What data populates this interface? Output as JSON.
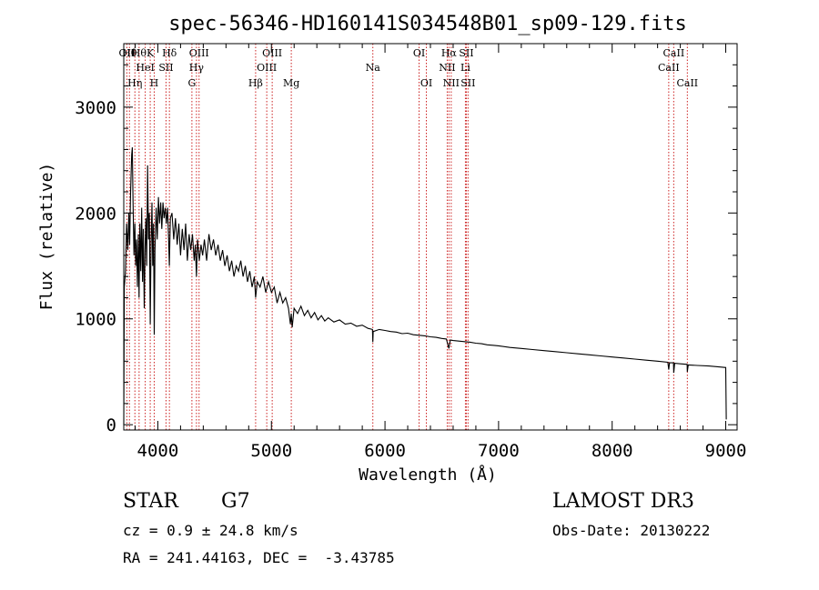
{
  "chart_data": {
    "type": "line",
    "title": "spec-56346-HD160141S034548B01_sp09-129.fits",
    "xlabel": "Wavelength (Å)",
    "ylabel": "Flux (relative)",
    "xlim": [
      3700,
      9100
    ],
    "ylim": [
      -50,
      3600
    ],
    "xticks": [
      4000,
      5000,
      6000,
      7000,
      8000,
      9000
    ],
    "yticks": [
      0,
      1000,
      2000,
      3000
    ],
    "series": [
      {
        "name": "flux",
        "points": [
          [
            3700,
            0
          ],
          [
            3705,
            1300
          ],
          [
            3715,
            1450
          ],
          [
            3725,
            1900
          ],
          [
            3735,
            1650
          ],
          [
            3745,
            2000
          ],
          [
            3752,
            1700
          ],
          [
            3760,
            2200
          ],
          [
            3770,
            2550
          ],
          [
            3775,
            2620
          ],
          [
            3782,
            2100
          ],
          [
            3790,
            1600
          ],
          [
            3798,
            1900
          ],
          [
            3805,
            1500
          ],
          [
            3812,
            1750
          ],
          [
            3820,
            1300
          ],
          [
            3828,
            1800
          ],
          [
            3835,
            1200
          ],
          [
            3842,
            1900
          ],
          [
            3850,
            1450
          ],
          [
            3858,
            2050
          ],
          [
            3865,
            1350
          ],
          [
            3872,
            1850
          ],
          [
            3880,
            1100
          ],
          [
            3888,
            1700
          ],
          [
            3895,
            1950
          ],
          [
            3902,
            1500
          ],
          [
            3910,
            2450
          ],
          [
            3918,
            1750
          ],
          [
            3925,
            2000
          ],
          [
            3933,
            950
          ],
          [
            3940,
            1700
          ],
          [
            3948,
            2100
          ],
          [
            3955,
            1500
          ],
          [
            3962,
            1900
          ],
          [
            3968,
            850
          ],
          [
            3975,
            1650
          ],
          [
            3985,
            2050
          ],
          [
            3995,
            1750
          ],
          [
            4005,
            2150
          ],
          [
            4015,
            1900
          ],
          [
            4025,
            2100
          ],
          [
            4035,
            1850
          ],
          [
            4045,
            2100
          ],
          [
            4055,
            1950
          ],
          [
            4065,
            2050
          ],
          [
            4075,
            1900
          ],
          [
            4085,
            2050
          ],
          [
            4095,
            1750
          ],
          [
            4101,
            1500
          ],
          [
            4110,
            1950
          ],
          [
            4125,
            2000
          ],
          [
            4140,
            1750
          ],
          [
            4155,
            1950
          ],
          [
            4170,
            1700
          ],
          [
            4185,
            1900
          ],
          [
            4200,
            1600
          ],
          [
            4215,
            1850
          ],
          [
            4230,
            1650
          ],
          [
            4245,
            1900
          ],
          [
            4260,
            1550
          ],
          [
            4275,
            1800
          ],
          [
            4290,
            1650
          ],
          [
            4305,
            1800
          ],
          [
            4320,
            1550
          ],
          [
            4330,
            1700
          ],
          [
            4340,
            1400
          ],
          [
            4350,
            1750
          ],
          [
            4365,
            1550
          ],
          [
            4380,
            1700
          ],
          [
            4395,
            1600
          ],
          [
            4410,
            1750
          ],
          [
            4430,
            1550
          ],
          [
            4450,
            1800
          ],
          [
            4470,
            1650
          ],
          [
            4490,
            1750
          ],
          [
            4510,
            1600
          ],
          [
            4530,
            1700
          ],
          [
            4550,
            1550
          ],
          [
            4570,
            1650
          ],
          [
            4590,
            1500
          ],
          [
            4610,
            1600
          ],
          [
            4630,
            1450
          ],
          [
            4650,
            1550
          ],
          [
            4670,
            1400
          ],
          [
            4690,
            1500
          ],
          [
            4710,
            1450
          ],
          [
            4730,
            1550
          ],
          [
            4750,
            1400
          ],
          [
            4770,
            1500
          ],
          [
            4790,
            1350
          ],
          [
            4810,
            1450
          ],
          [
            4830,
            1300
          ],
          [
            4850,
            1400
          ],
          [
            4861,
            1200
          ],
          [
            4875,
            1350
          ],
          [
            4900,
            1300
          ],
          [
            4925,
            1400
          ],
          [
            4950,
            1250
          ],
          [
            4975,
            1350
          ],
          [
            5000,
            1250
          ],
          [
            5025,
            1300
          ],
          [
            5050,
            1150
          ],
          [
            5075,
            1250
          ],
          [
            5100,
            1150
          ],
          [
            5125,
            1200
          ],
          [
            5150,
            1100
          ],
          [
            5167,
            950
          ],
          [
            5175,
            1050
          ],
          [
            5183,
            920
          ],
          [
            5200,
            1100
          ],
          [
            5230,
            1050
          ],
          [
            5260,
            1120
          ],
          [
            5290,
            1030
          ],
          [
            5320,
            1080
          ],
          [
            5350,
            1010
          ],
          [
            5380,
            1060
          ],
          [
            5410,
            990
          ],
          [
            5440,
            1030
          ],
          [
            5470,
            980
          ],
          [
            5500,
            1010
          ],
          [
            5550,
            970
          ],
          [
            5600,
            990
          ],
          [
            5650,
            950
          ],
          [
            5700,
            960
          ],
          [
            5750,
            930
          ],
          [
            5800,
            940
          ],
          [
            5850,
            910
          ],
          [
            5890,
            900
          ],
          [
            5893,
            780
          ],
          [
            5896,
            880
          ],
          [
            5950,
            900
          ],
          [
            6000,
            890
          ],
          [
            6050,
            880
          ],
          [
            6100,
            875
          ],
          [
            6150,
            860
          ],
          [
            6200,
            865
          ],
          [
            6250,
            850
          ],
          [
            6300,
            845
          ],
          [
            6350,
            840
          ],
          [
            6400,
            830
          ],
          [
            6450,
            825
          ],
          [
            6500,
            815
          ],
          [
            6540,
            810
          ],
          [
            6563,
            720
          ],
          [
            6575,
            800
          ],
          [
            6600,
            795
          ],
          [
            6650,
            790
          ],
          [
            6700,
            785
          ],
          [
            6750,
            780
          ],
          [
            6800,
            770
          ],
          [
            6850,
            765
          ],
          [
            6900,
            755
          ],
          [
            6950,
            750
          ],
          [
            7000,
            745
          ],
          [
            7100,
            730
          ],
          [
            7200,
            720
          ],
          [
            7300,
            710
          ],
          [
            7400,
            700
          ],
          [
            7500,
            690
          ],
          [
            7600,
            680
          ],
          [
            7700,
            670
          ],
          [
            7800,
            660
          ],
          [
            7900,
            650
          ],
          [
            8000,
            640
          ],
          [
            8100,
            630
          ],
          [
            8200,
            620
          ],
          [
            8300,
            610
          ],
          [
            8400,
            600
          ],
          [
            8490,
            590
          ],
          [
            8498,
            520
          ],
          [
            8505,
            585
          ],
          [
            8540,
            585
          ],
          [
            8542,
            490
          ],
          [
            8550,
            580
          ],
          [
            8600,
            575
          ],
          [
            8660,
            570
          ],
          [
            8662,
            500
          ],
          [
            8670,
            565
          ],
          [
            8750,
            560
          ],
          [
            8850,
            555
          ],
          [
            8950,
            545
          ],
          [
            9000,
            540
          ],
          [
            9005,
            50
          ]
        ]
      }
    ],
    "lines": [
      {
        "wl": 3727,
        "rows": [
          "OII"
        ]
      },
      {
        "wl": 3750,
        "rows": [
          "Hθ"
        ]
      },
      {
        "wl": 3798,
        "rows": [
          "",
          "",
          "Hη"
        ]
      },
      {
        "wl": 3835,
        "rows": [
          "Hθ"
        ]
      },
      {
        "wl": 3889,
        "rows": [
          "",
          "HeI"
        ]
      },
      {
        "wl": 3933,
        "rows": [
          "K"
        ]
      },
      {
        "wl": 3968,
        "rows": [
          "",
          "",
          "H"
        ]
      },
      {
        "wl": 4072,
        "rows": [
          "",
          "SII"
        ]
      },
      {
        "wl": 4102,
        "rows": [
          "Hδ"
        ]
      },
      {
        "wl": 4300,
        "rows": [
          "",
          "",
          "G"
        ]
      },
      {
        "wl": 4340,
        "rows": [
          "",
          "Hγ"
        ]
      },
      {
        "wl": 4363,
        "rows": [
          "OIII"
        ]
      },
      {
        "wl": 4861,
        "rows": [
          "",
          "",
          "Hβ"
        ]
      },
      {
        "wl": 4959,
        "rows": [
          "",
          "OIII"
        ]
      },
      {
        "wl": 5007,
        "rows": [
          "OIII"
        ]
      },
      {
        "wl": 5175,
        "rows": [
          "",
          "",
          "Mg"
        ]
      },
      {
        "wl": 5893,
        "rows": [
          "",
          "Na"
        ]
      },
      {
        "wl": 6300,
        "rows": [
          "OI"
        ]
      },
      {
        "wl": 6364,
        "rows": [
          "",
          "",
          "OI"
        ]
      },
      {
        "wl": 6548,
        "rows": [
          "",
          "NII"
        ]
      },
      {
        "wl": 6563,
        "rows": [
          "Hα"
        ]
      },
      {
        "wl": 6583,
        "rows": [
          "",
          "",
          "NII"
        ]
      },
      {
        "wl": 6708,
        "rows": [
          "",
          "Li"
        ]
      },
      {
        "wl": 6716,
        "rows": [
          "SII"
        ]
      },
      {
        "wl": 6731,
        "rows": [
          "",
          "",
          "SII"
        ]
      },
      {
        "wl": 8498,
        "rows": [
          "",
          "CaII"
        ]
      },
      {
        "wl": 8542,
        "rows": [
          "CaII"
        ]
      },
      {
        "wl": 8662,
        "rows": [
          "",
          "",
          "CaII"
        ]
      }
    ],
    "line_color": "#cc2222",
    "flux_color": "#000000"
  },
  "info": {
    "class_label": "STAR",
    "subclass": "G7",
    "survey": "LAMOST DR3",
    "cz": "cz = 0.9 ± 24.8 km/s",
    "obs_date": "Obs-Date: 20130222",
    "coords": "RA = 241.44163, DEC =  -3.43785"
  }
}
